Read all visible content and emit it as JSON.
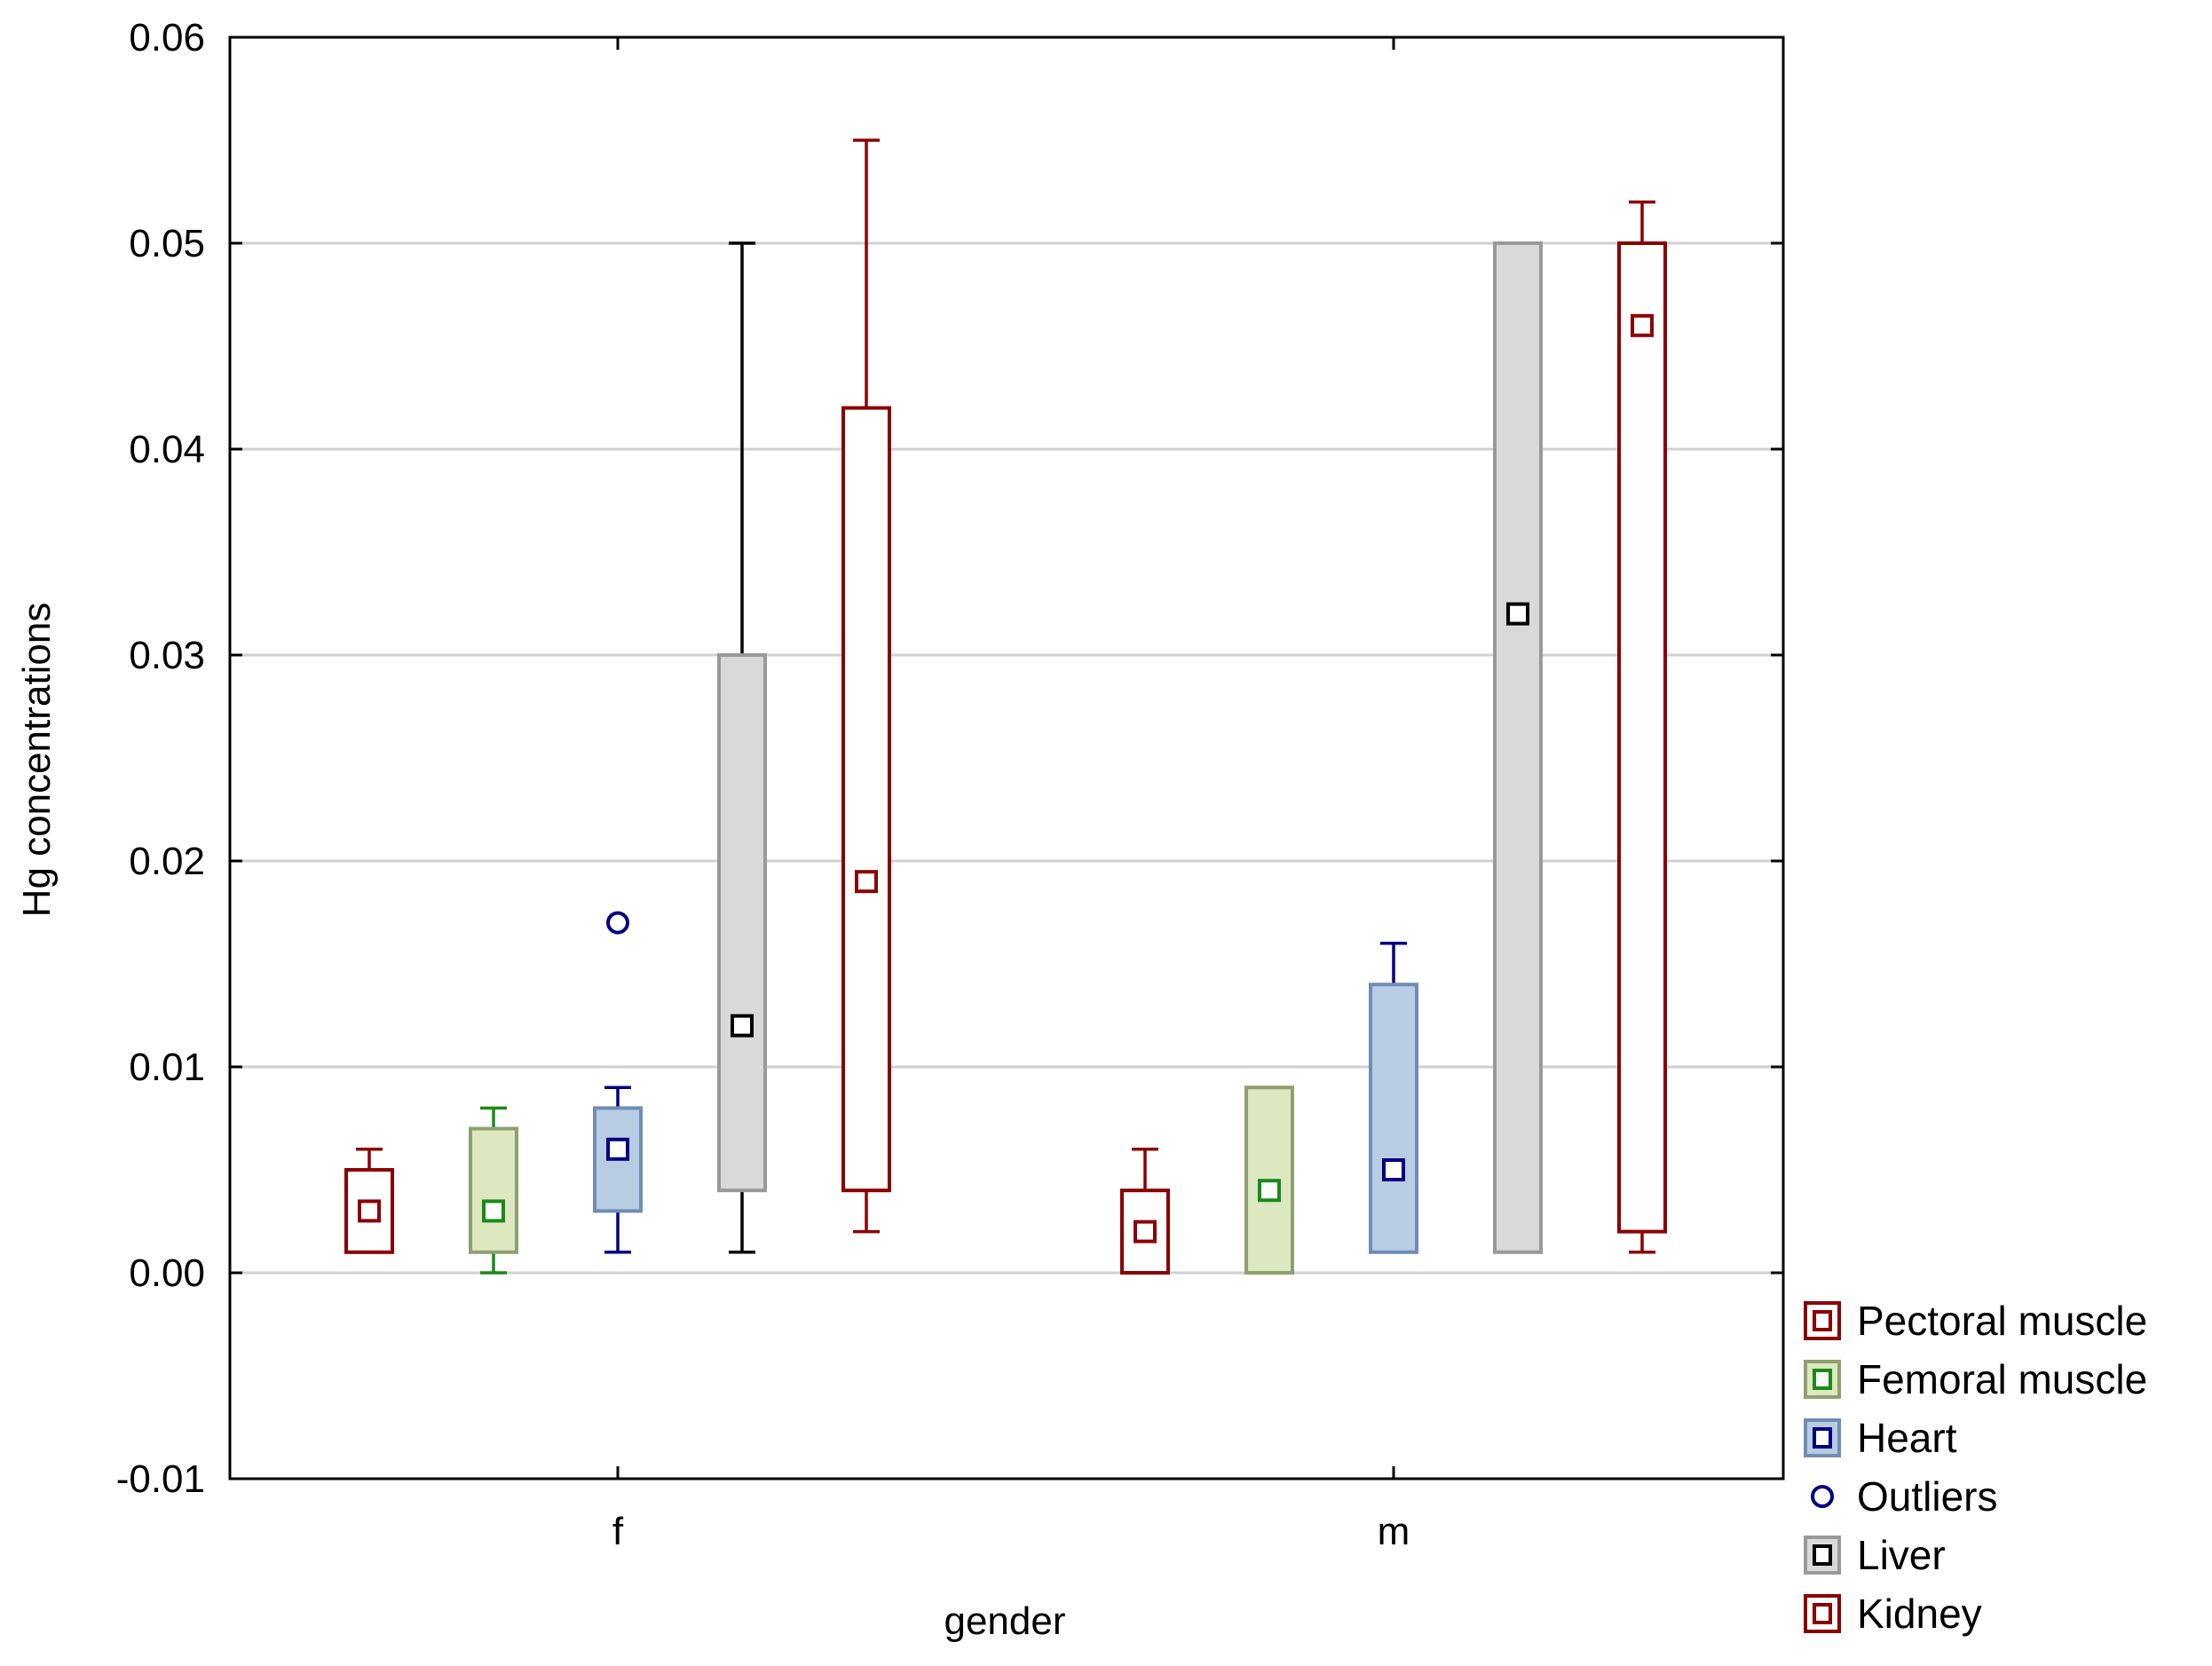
{
  "chart_data": {
    "type": "boxplot",
    "title": "",
    "xlabel": "gender",
    "ylabel": "Hg concentrations",
    "ylim": [
      -0.01,
      0.06
    ],
    "yticks": [
      {
        "value": -0.01,
        "label": "-0.01"
      },
      {
        "value": 0.0,
        "label": "0.00"
      },
      {
        "value": 0.01,
        "label": "0.01"
      },
      {
        "value": 0.02,
        "label": "0.02"
      },
      {
        "value": 0.03,
        "label": "0.03"
      },
      {
        "value": 0.04,
        "label": "0.04"
      },
      {
        "value": 0.05,
        "label": "0.05"
      },
      {
        "value": 0.06,
        "label": "0.06"
      }
    ],
    "gridlines": true,
    "categories": [
      "f",
      "m"
    ],
    "series": [
      {
        "name": "Pectoral muscle",
        "stroke": "#8b0000",
        "fill": "#ffffff",
        "marker": "#8b0000",
        "data": [
          {
            "whisker_low": 0.001,
            "q1": 0.001,
            "median": 0.003,
            "q3": 0.005,
            "whisker_high": 0.006
          },
          {
            "whisker_low": 0.0,
            "q1": 0.0,
            "median": 0.002,
            "q3": 0.004,
            "whisker_high": 0.006
          }
        ]
      },
      {
        "name": "Femoral muscle",
        "stroke": "#8ea070",
        "fill": "#dde7c0",
        "whisker": "#1a8a1a",
        "marker": "#1a8a1a",
        "data": [
          {
            "whisker_low": 0.0,
            "q1": 0.001,
            "median": 0.003,
            "q3": 0.007,
            "whisker_high": 0.008
          },
          {
            "whisker_low": 0.0,
            "q1": 0.0,
            "median": 0.004,
            "q3": 0.009,
            "whisker_high": 0.009
          }
        ]
      },
      {
        "name": "Heart",
        "stroke": "#6f8db5",
        "fill": "#b8cce4",
        "whisker": "#000080",
        "marker": "#000080",
        "data": [
          {
            "whisker_low": 0.001,
            "q1": 0.003,
            "median": 0.006,
            "q3": 0.008,
            "whisker_high": 0.009,
            "outliers": [
              0.017
            ]
          },
          {
            "whisker_low": 0.001,
            "q1": 0.001,
            "median": 0.005,
            "q3": 0.014,
            "whisker_high": 0.016
          }
        ]
      },
      {
        "name": "Liver",
        "stroke": "#999999",
        "fill": "#d9d9d9",
        "whisker": "#000000",
        "marker": "#000000",
        "data": [
          {
            "whisker_low": 0.001,
            "q1": 0.004,
            "median": 0.012,
            "q3": 0.03,
            "whisker_high": 0.05
          },
          {
            "whisker_low": 0.001,
            "q1": 0.001,
            "median": 0.032,
            "q3": 0.05,
            "whisker_high": 0.05
          }
        ]
      },
      {
        "name": "Kidney",
        "stroke": "#8b0000",
        "fill": "#ffffff",
        "marker": "#8b0000",
        "data": [
          {
            "whisker_low": 0.002,
            "q1": 0.004,
            "median": 0.019,
            "q3": 0.042,
            "whisker_high": 0.055
          },
          {
            "whisker_low": 0.001,
            "q1": 0.002,
            "median": 0.046,
            "q3": 0.05,
            "whisker_high": 0.052
          }
        ]
      }
    ],
    "legend": {
      "position": "bottom-right",
      "entries": [
        {
          "label": "Pectoral muscle",
          "kind": "box",
          "stroke": "#8b0000",
          "fill": "#ffffff",
          "marker": "#8b0000"
        },
        {
          "label": "Femoral muscle",
          "kind": "box",
          "stroke": "#8ea070",
          "fill": "#dde7c0",
          "marker": "#1a8a1a"
        },
        {
          "label": "Heart",
          "kind": "box",
          "stroke": "#6f8db5",
          "fill": "#b8cce4",
          "marker": "#000080"
        },
        {
          "label": "Outliers",
          "kind": "circle",
          "stroke": "#000080"
        },
        {
          "label": "Liver",
          "kind": "box",
          "stroke": "#999999",
          "fill": "#d9d9d9",
          "marker": "#000000"
        },
        {
          "label": "Kidney",
          "kind": "box",
          "stroke": "#8b0000",
          "fill": "#ffffff",
          "marker": "#8b0000"
        }
      ]
    }
  }
}
